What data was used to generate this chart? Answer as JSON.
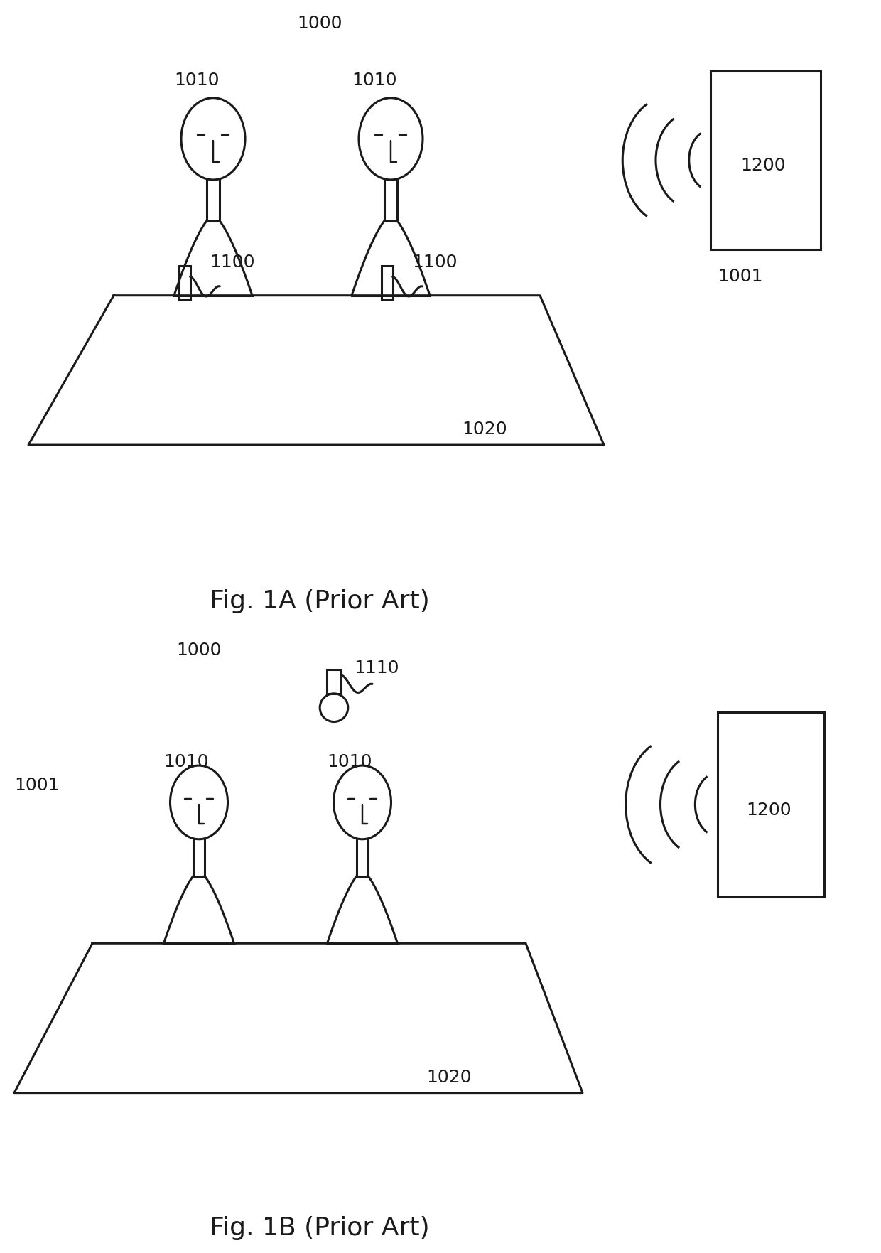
{
  "fig1a_label": "Fig. 1A (Prior Art)",
  "fig1b_label": "Fig. 1B (Prior Art)",
  "label_1000": "1000",
  "label_1001": "1001",
  "label_1010": "1010",
  "label_1020": "1020",
  "label_1100": "1100",
  "label_1110": "1110",
  "label_1200": "1200",
  "line_color": "#1a1a1a",
  "bg_color": "#ffffff",
  "linewidth": 2.2,
  "font_size_label": 18,
  "font_size_fig": 26
}
